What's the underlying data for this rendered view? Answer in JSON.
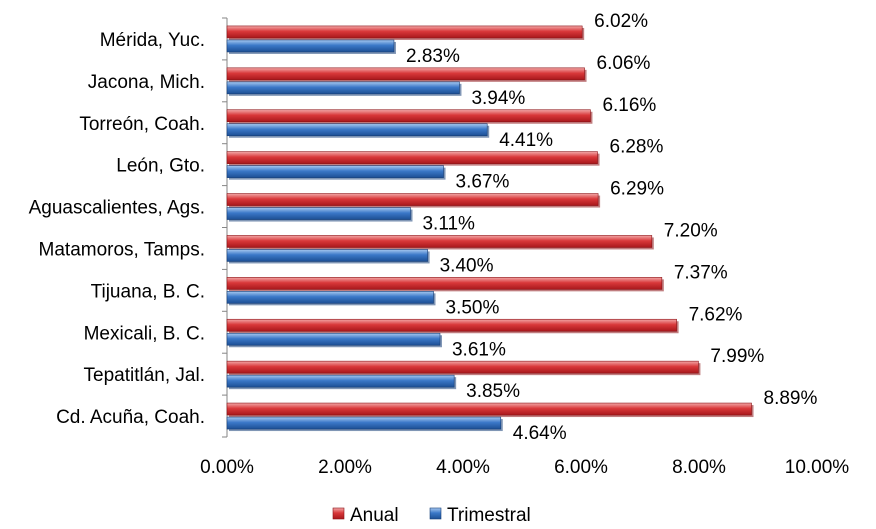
{
  "chart_data": {
    "type": "bar",
    "orientation": "horizontal",
    "title": "",
    "xlabel": "",
    "ylabel": "",
    "xlim": [
      0,
      10
    ],
    "grid": false,
    "legend_position": "bottom",
    "categories": [
      "Mérida, Yuc.",
      "Jacona, Mich.",
      "Torreón, Coah.",
      "León, Gto.",
      "Aguascalientes, Ags.",
      "Matamoros, Tamps.",
      "Tijuana, B. C.",
      "Mexicali, B. C.",
      "Tepatitlán, Jal.",
      "Cd. Acuña, Coah."
    ],
    "series": [
      {
        "name": "Anual",
        "color": "#d9383a",
        "values": [
          6.02,
          6.06,
          6.16,
          6.28,
          6.29,
          7.2,
          7.37,
          7.62,
          7.99,
          8.89
        ],
        "labels": [
          "6.02%",
          "6.06%",
          "6.16%",
          "6.28%",
          "6.29%",
          "7.20%",
          "7.37%",
          "7.62%",
          "7.99%",
          "8.89%"
        ]
      },
      {
        "name": "Trimestral",
        "color": "#3b78c8",
        "values": [
          2.83,
          3.94,
          4.41,
          3.67,
          3.11,
          3.4,
          3.5,
          3.61,
          3.85,
          4.64
        ],
        "labels": [
          "2.83%",
          "3.94%",
          "4.41%",
          "3.67%",
          "3.11%",
          "3.40%",
          "3.50%",
          "3.61%",
          "3.85%",
          "4.64%"
        ]
      }
    ],
    "x_ticks": [
      0,
      2,
      4,
      6,
      8,
      10
    ],
    "x_tick_labels": [
      "0.00%",
      "2.00%",
      "4.00%",
      "6.00%",
      "8.00%",
      "10.00%"
    ]
  }
}
